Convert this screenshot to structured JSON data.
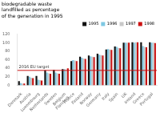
{
  "chart_data": {
    "type": "bar",
    "title": [
      "biodegradable waste",
      "landfilled as percentage",
      "of the generation in 1995"
    ],
    "categories": [
      "Denmark",
      "Austria",
      "Luxembourg",
      "Netherlands",
      "Sweden",
      "Belgium\nFlanders",
      "France",
      "Finland",
      "Norway",
      "Germany",
      "Italy",
      "Spain",
      "UK",
      "Ireland",
      "Greece",
      "Portugal"
    ],
    "series": [
      {
        "name": "1995",
        "color": "#111111",
        "values": [
          10,
          22,
          22,
          35,
          36,
          38,
          57,
          67,
          70,
          74,
          84,
          91,
          100,
          101,
          101,
          101
        ]
      },
      {
        "name": "1996",
        "color": "#7ec8e3",
        "values": [
          5,
          20,
          13,
          30,
          30,
          38,
          59,
          65,
          68,
          72,
          85,
          90,
          100,
          100,
          92,
          100
        ]
      },
      {
        "name": "1997",
        "color": "#c8c8c8",
        "values": [
          4,
          18,
          12,
          28,
          28,
          36,
          58,
          63,
          67,
          71,
          84,
          88,
          100,
          101,
          90,
          100
        ]
      },
      {
        "name": "1998",
        "color": "#cc1111",
        "values": [
          4,
          17,
          11,
          27,
          27,
          40,
          57,
          62,
          66,
          70,
          83,
          87,
          100,
          101,
          89,
          99
        ]
      }
    ],
    "annotations": [
      {
        "text": "2016 EU target",
        "y": 35,
        "color": "#cc1111"
      }
    ],
    "ylim": [
      0,
      120
    ],
    "yticks": [
      0,
      20,
      40,
      60,
      80,
      100,
      120
    ],
    "grid": false,
    "legend": "upper right"
  }
}
